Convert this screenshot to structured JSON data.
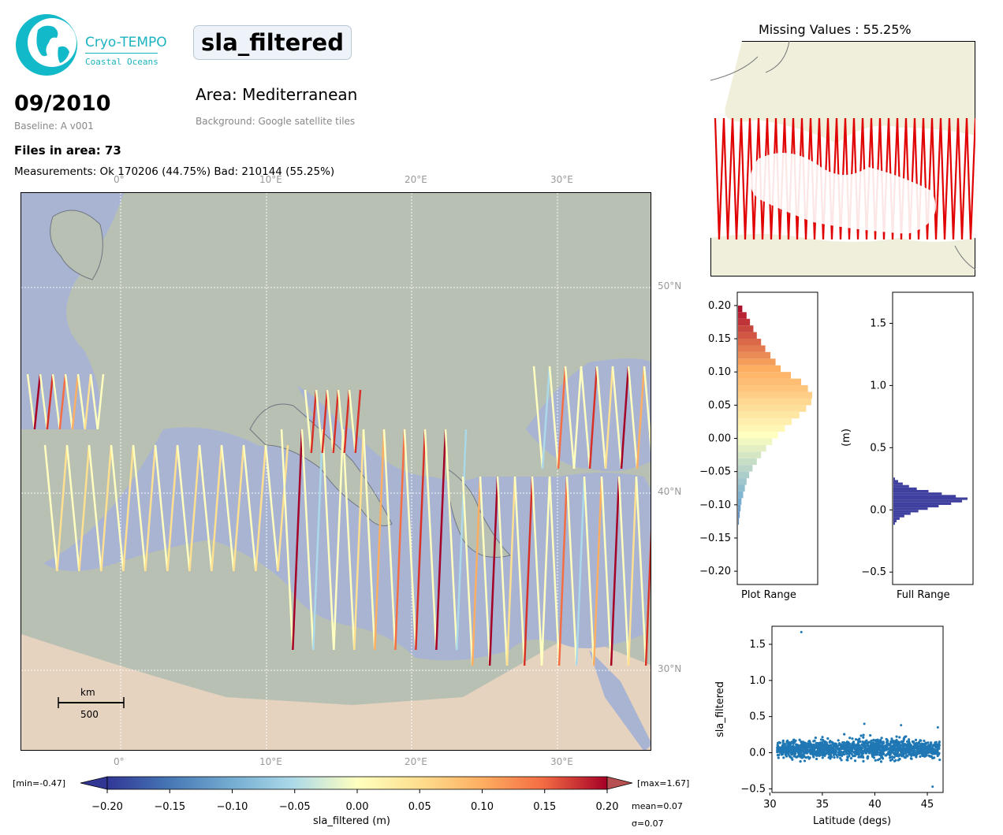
{
  "header": {
    "logo_title": "Cryo-TEMPO",
    "logo_subtitle": "Coastal Oceans",
    "variable": "sla_filtered",
    "date": "09/2010",
    "baseline": "Baseline: A v001",
    "area": "Area: Mediterranean",
    "background": "Background: Google satellite tiles",
    "files": "Files in area: 73",
    "measurements": "Measurements: Ok 170206 (44.75%) Bad: 210144 (55.25%)"
  },
  "map": {
    "lon_labels": [
      "0°",
      "10°E",
      "20°E",
      "30°E"
    ],
    "lat_labels": [
      "50°N",
      "40°N",
      "30°N"
    ],
    "scale_unit": "km",
    "scale_value": "500",
    "colors": {
      "sea": "#a9b4d2",
      "land": "#b8c0b4",
      "desert": "#e8d2bc"
    }
  },
  "colorbar": {
    "min_label": "[min=-0.47]",
    "max_label": "[max=1.67]",
    "ticks": [
      "−0.20",
      "−0.15",
      "−0.10",
      "−0.05",
      "0.00",
      "0.05",
      "0.10",
      "0.15",
      "0.20"
    ],
    "label": "sla_filtered (m)",
    "mean": "mean=0.07",
    "sigma": "σ=0.07"
  },
  "missing": {
    "title": "Missing Values : 55.25%",
    "colors": {
      "missing": "#e00000",
      "land": "#efefdc"
    }
  },
  "chart_data": [
    {
      "type": "bar",
      "orientation": "horizontal",
      "xlabel": "Plot Range",
      "ylim": [
        -0.22,
        0.22
      ],
      "yticks": [
        "0.20",
        "0.15",
        "0.10",
        "0.05",
        "0.00",
        "−0.05",
        "−0.10",
        "−0.15",
        "−0.20"
      ],
      "bins": [
        -0.2,
        -0.19,
        -0.18,
        -0.17,
        -0.16,
        -0.15,
        -0.14,
        -0.13,
        -0.12,
        -0.11,
        -0.1,
        -0.09,
        -0.08,
        -0.07,
        -0.06,
        -0.05,
        -0.04,
        -0.03,
        -0.02,
        -0.01,
        0.0,
        0.01,
        0.02,
        0.03,
        0.04,
        0.05,
        0.06,
        0.07,
        0.08,
        0.09,
        0.1,
        0.11,
        0.12,
        0.13,
        0.14,
        0.15,
        0.16,
        0.17,
        0.18,
        0.19
      ],
      "counts": [
        0,
        0,
        0,
        0,
        0,
        0,
        0,
        1,
        2,
        3,
        4,
        6,
        8,
        10,
        13,
        17,
        22,
        27,
        33,
        40,
        47,
        55,
        63,
        72,
        80,
        86,
        87,
        82,
        74,
        62,
        50,
        44,
        38,
        32,
        27,
        22,
        18,
        14,
        10,
        5
      ]
    },
    {
      "type": "bar",
      "orientation": "horizontal",
      "xlabel": "Full Range",
      "ylabel": "(m)",
      "ylim": [
        -0.6,
        1.75
      ],
      "yticks": [
        "1.5",
        "1.0",
        "0.5",
        "0.0",
        "−0.5"
      ],
      "bins": [
        -0.12,
        -0.1,
        -0.08,
        -0.06,
        -0.04,
        -0.02,
        0.0,
        0.02,
        0.04,
        0.06,
        0.08,
        0.1,
        0.12,
        0.14,
        0.16,
        0.18,
        0.2,
        0.22,
        0.24
      ],
      "counts": [
        2,
        4,
        8,
        14,
        22,
        32,
        44,
        58,
        74,
        88,
        95,
        80,
        62,
        45,
        30,
        20,
        12,
        6,
        2
      ]
    },
    {
      "type": "scatter",
      "xlabel": "Latitude (degs)",
      "ylabel": "sla_filtered",
      "xlim": [
        30.2,
        46.5
      ],
      "ylim": [
        -0.55,
        1.75
      ],
      "xticks": [
        "30",
        "35",
        "40",
        "45"
      ],
      "yticks": [
        "1.5",
        "1.0",
        "0.5",
        "0.0",
        "−0.5"
      ],
      "outliers": [
        [
          33.0,
          1.67
        ],
        [
          45.5,
          -0.47
        ],
        [
          46.0,
          0.35
        ],
        [
          39.0,
          0.4
        ],
        [
          42.5,
          0.38
        ]
      ]
    }
  ]
}
